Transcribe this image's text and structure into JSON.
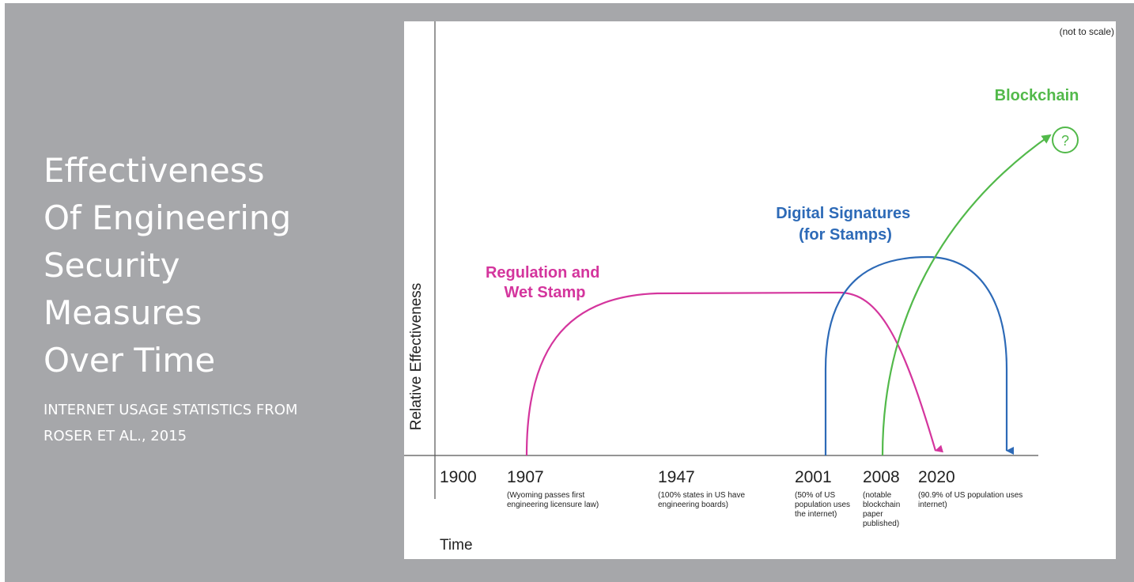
{
  "slide": {
    "title": "Effectiveness\nOf Engineering\nSecurity\nMeasures\nOver Time",
    "subtitle": "INTERNET USAGE STATISTICS FROM\nROSER ET AL., 2015"
  },
  "diagram": {
    "scale_note": "(not to scale)",
    "x_axis_label": "Time",
    "y_axis_label": "Relative Effectiveness",
    "years": [
      "1900",
      "1907",
      "1947",
      "2001",
      "2008",
      "2020"
    ],
    "year_notes": {
      "1907": [
        "(Wyoming passes first",
        "engineering licensure law)"
      ],
      "1947": [
        "(100% states in US have",
        "engineering boards)"
      ],
      "2001": [
        "(50% of US",
        "population uses",
        "the internet)"
      ],
      "2008": [
        "(notable",
        "blockchain",
        "paper",
        "published)"
      ],
      "2020": [
        "(90.9% of US population uses",
        "internet)"
      ]
    },
    "curves": [
      {
        "name": "regulation",
        "label": [
          "Regulation and",
          "Wet Stamp"
        ],
        "color": "#d4359d"
      },
      {
        "name": "digital-signatures",
        "label": [
          "Digital Signatures",
          "(for Stamps)"
        ],
        "color": "#2d6ab7"
      },
      {
        "name": "blockchain",
        "label": [
          "Blockchain"
        ],
        "color": "#52b94a",
        "end_marker": "?"
      }
    ]
  }
}
